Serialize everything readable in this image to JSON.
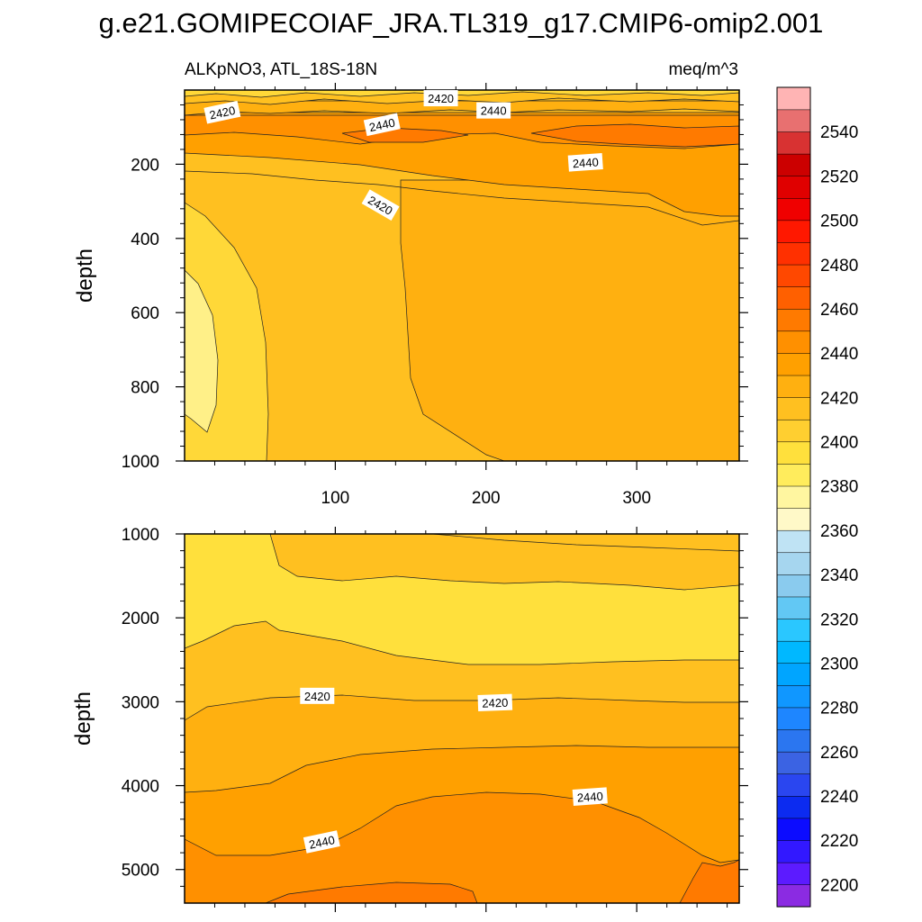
{
  "chart_data": {
    "type": "contour",
    "title": "g.e21.GOMIPECOIAF_JRA.TL319_g17.CMIP6-omip2.001",
    "left_subtitle": "ALKpNO3, ATL_18S-18N",
    "right_subtitle": "meq/m^3",
    "colorbar": {
      "levels": [
        2190,
        2200,
        2210,
        2220,
        2230,
        2240,
        2250,
        2260,
        2270,
        2280,
        2290,
        2300,
        2310,
        2320,
        2330,
        2340,
        2350,
        2360,
        2370,
        2380,
        2390,
        2400,
        2410,
        2420,
        2430,
        2440,
        2450,
        2460,
        2470,
        2480,
        2490,
        2500,
        2510,
        2520,
        2530,
        2540,
        2550,
        2560
      ],
      "colors": [
        "#8b2be2",
        "#5c1bff",
        "#3218ff",
        "#0c0cff",
        "#0c2bf0",
        "#2a46f0",
        "#3b63e3",
        "#2b76f0",
        "#1e86ff",
        "#1097ff",
        "#00a5ff",
        "#00b8ff",
        "#2ac7ff",
        "#62c8f4",
        "#8acbee",
        "#a6d6ef",
        "#bfe3f4",
        "#fff9c8",
        "#fff6a0",
        "#ffec5c",
        "#ffe03c",
        "#ffcf30",
        "#ffc020",
        "#ffb010",
        "#ffa000",
        "#ff9000",
        "#ff7a00",
        "#ff6000",
        "#ff4800",
        "#ff3000",
        "#ff1800",
        "#f00000",
        "#e00000",
        "#cc0000",
        "#d83232",
        "#e87070",
        "#ffb4b4"
      ],
      "tick_labels": [
        "2200",
        "2220",
        "2240",
        "2260",
        "2280",
        "2300",
        "2320",
        "2340",
        "2360",
        "2380",
        "2400",
        "2420",
        "2440",
        "2460",
        "2480",
        "2500",
        "2520",
        "2540"
      ]
    },
    "panels": [
      {
        "name": "upper",
        "ylabel": "depth",
        "xlim": [
          0,
          368
        ],
        "ylim": [
          0,
          1000
        ],
        "y_inverted": true,
        "xticks": [
          100,
          200,
          300
        ],
        "yticks": [
          200,
          400,
          600,
          800,
          1000
        ],
        "contour_labels": [
          {
            "text": "2420",
            "x": 25,
            "y": 60,
            "angle": -12
          },
          {
            "text": "2420",
            "x": 170,
            "y": 22,
            "angle": 0
          },
          {
            "text": "2440",
            "x": 205,
            "y": 55,
            "angle": 0
          },
          {
            "text": "2440",
            "x": 131,
            "y": 93,
            "angle": -12
          },
          {
            "text": "2440",
            "x": 266,
            "y": 195,
            "angle": -4
          },
          {
            "text": "2420",
            "x": 130,
            "y": 310,
            "angle": 30
          }
        ]
      },
      {
        "name": "lower",
        "ylabel": "depth",
        "xlim": [
          0,
          368
        ],
        "ylim": [
          1000,
          5400
        ],
        "y_inverted": true,
        "xticks": [
          100,
          200,
          300
        ],
        "yticks": [
          1000,
          2000,
          3000,
          4000,
          5000
        ],
        "contour_labels": [
          {
            "text": "2420",
            "x": 88,
            "y": 2930,
            "angle": 0
          },
          {
            "text": "2420",
            "x": 206,
            "y": 3010,
            "angle": -2
          },
          {
            "text": "2440",
            "x": 269,
            "y": 4130,
            "angle": -4
          },
          {
            "text": "2440",
            "x": 91,
            "y": 4670,
            "angle": -12
          }
        ]
      }
    ]
  }
}
